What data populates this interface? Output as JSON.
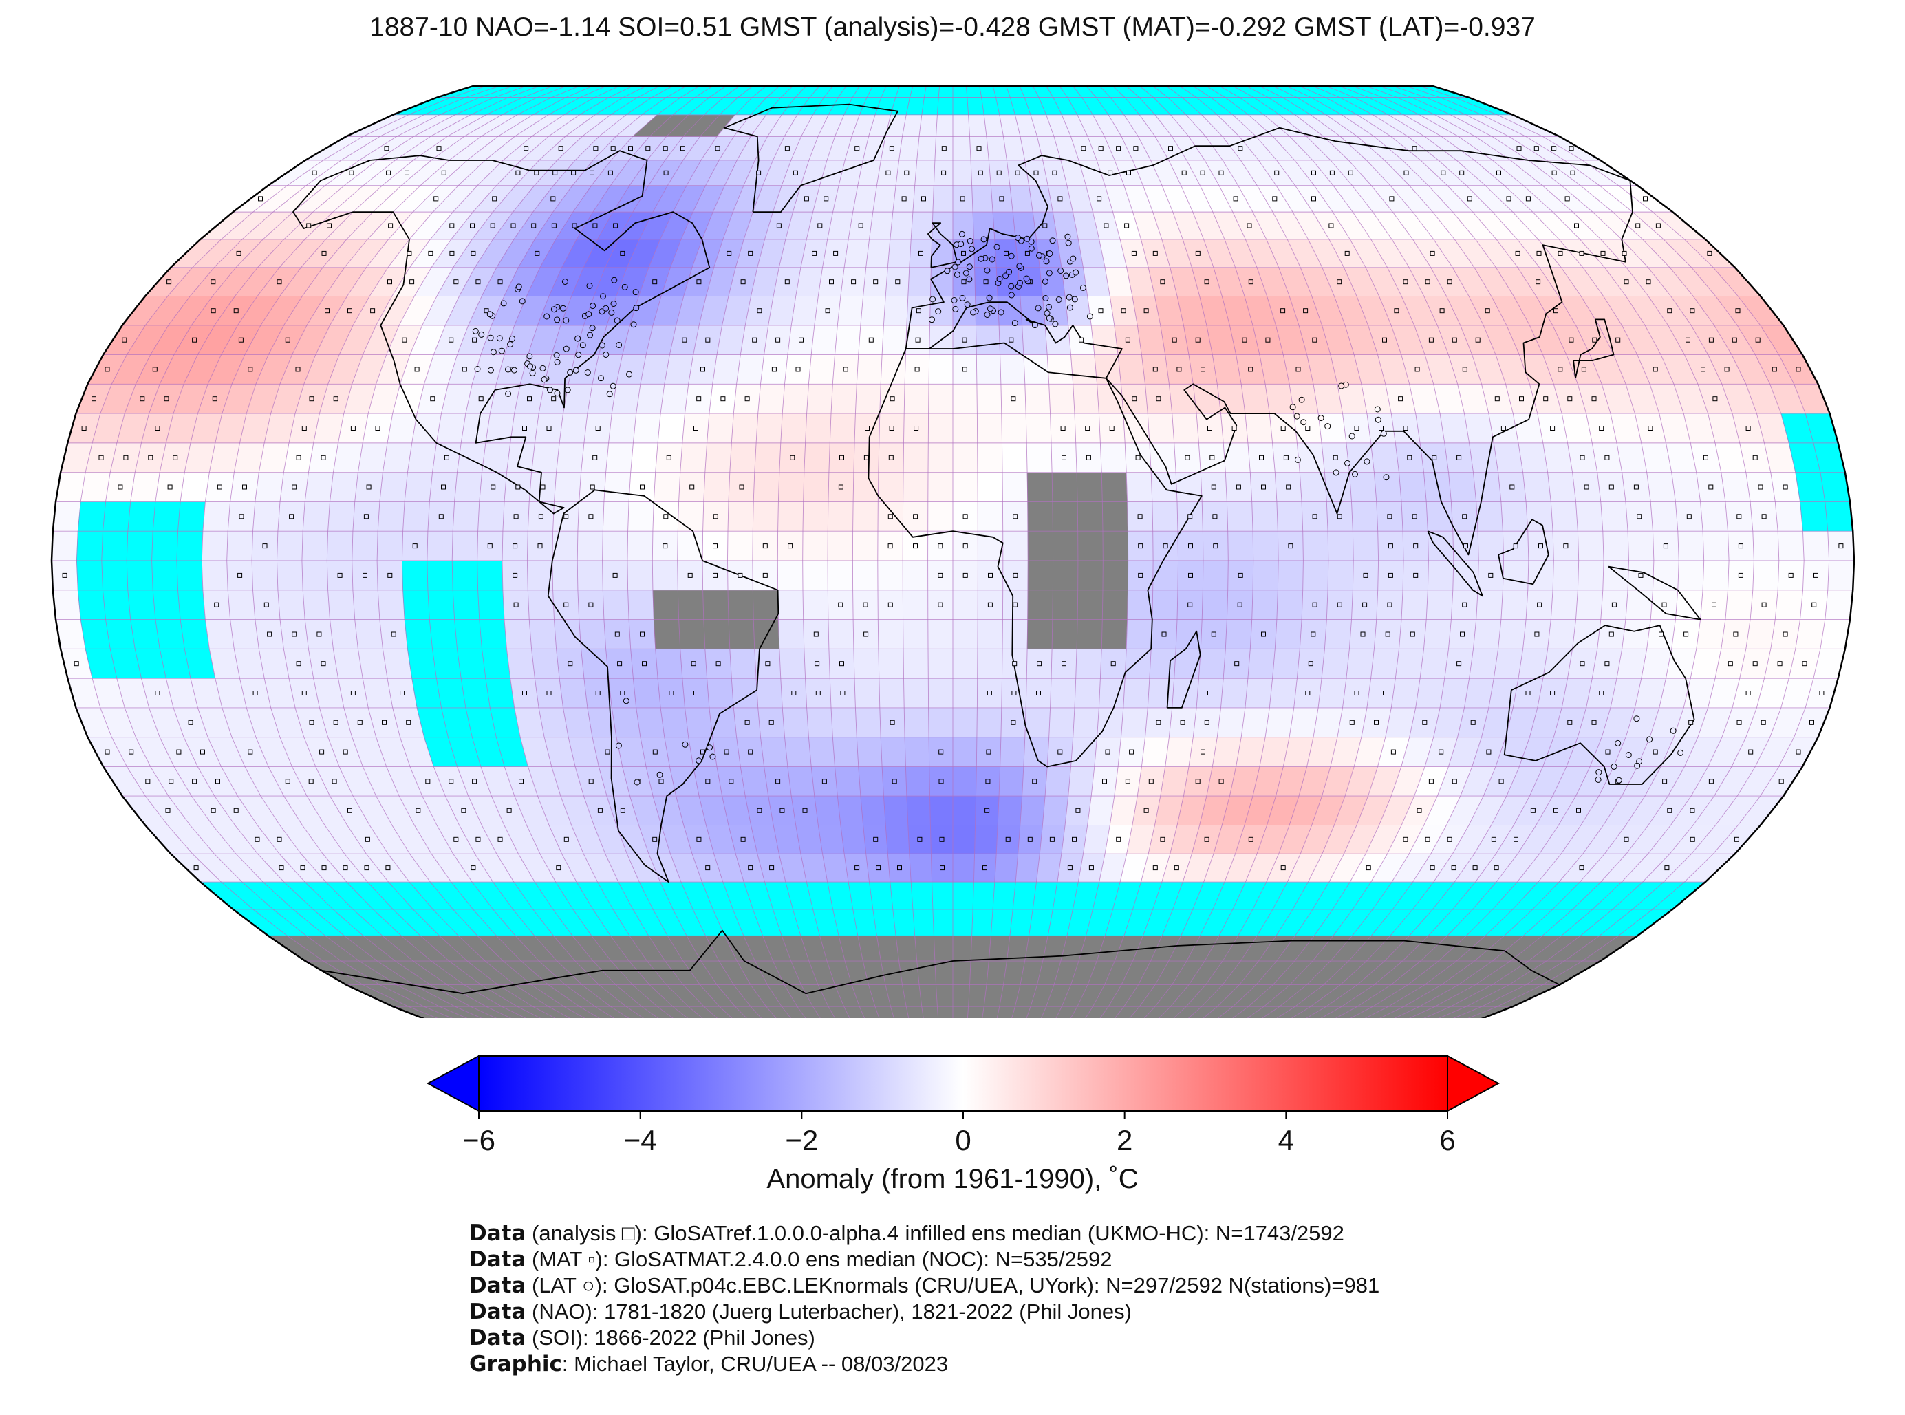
{
  "title": "1887-10 NAO=-1.14 SOI=0.51 GMST (analysis)=-0.428 GMST (MAT)=-0.292 GMST (LAT)=-0.937",
  "map": {
    "projection": "Robinson",
    "grid": "5x5 degree",
    "colors": {
      "no_data_ocean": "#00ffff",
      "no_data_land": "#808080",
      "gridline": "#b070c0",
      "coast": "#000000"
    }
  },
  "colorbar": {
    "ticks": [
      "−6",
      "−4",
      "−2",
      "0",
      "2",
      "4",
      "6"
    ],
    "tick_values": [
      -6,
      -4,
      -2,
      0,
      2,
      4,
      6
    ],
    "range": [
      -6,
      6
    ],
    "extend": "both",
    "colors": {
      "low": "#0000ff",
      "mid": "#ffffff",
      "high": "#ff0000"
    },
    "label": "Anomaly (from 1961-1990), ˚C"
  },
  "footer": [
    {
      "key": "Data",
      "text": " (analysis □): GloSATref.1.0.0.0-alpha.4 infilled ens median (UKMO-HC): N=1743/2592"
    },
    {
      "key": "Data",
      "text": " (MAT ▫): GloSATMAT.2.4.0.0 ens median (NOC): N=535/2592"
    },
    {
      "key": "Data",
      "text": " (LAT ○): GloSAT.p04c.EBC.LEKnormals (CRU/UEA, UYork): N=297/2592 N(stations)=981"
    },
    {
      "key": "Data",
      "text": " (NAO): 1781-1820 (Juerg Luterbacher), 1821-2022 (Phil Jones)"
    },
    {
      "key": "Data",
      "text": " (SOI): 1866-2022 (Phil Jones)"
    },
    {
      "key": "Graphic",
      "text": ": Michael Taylor, CRU/UEA -- 08/03/2023"
    }
  ]
}
